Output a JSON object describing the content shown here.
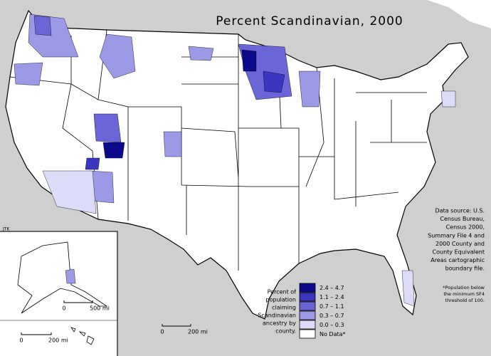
{
  "title": "Percent Scandinavian, 2000",
  "credit": "JTK",
  "source_note": [
    "Data source: U.S.",
    "Census Bureau,",
    "Census 2000,",
    "Summary File 4 and",
    "2000 County and",
    "County Equivalent",
    "Areas cartographic",
    "boundary file."
  ],
  "footnote": [
    "*Population below",
    "the minimum SF4",
    "threshold of 100."
  ],
  "legend": {
    "title": [
      "Percent of",
      "population",
      "claiming",
      "Scandinavian",
      "ancestry by",
      "county."
    ],
    "items": [
      {
        "label": "2.4 – 4.7",
        "color": "#0a0a8a"
      },
      {
        "label": "1.1 – 2.4",
        "color": "#3a36c0"
      },
      {
        "label": "0.7 – 1.1",
        "color": "#6a66d8"
      },
      {
        "label": "0.3 – 0.7",
        "color": "#9c9ae6"
      },
      {
        "label": "0.0 – 0.3",
        "color": "#dcdcf8"
      },
      {
        "label": "No Data*",
        "color": "#ffffff"
      }
    ]
  },
  "scale_bars": [
    {
      "start": "0",
      "end": "500 mi"
    },
    {
      "start": "0",
      "end": "200 mi"
    },
    {
      "start": "0",
      "end": "200 mi"
    }
  ]
}
